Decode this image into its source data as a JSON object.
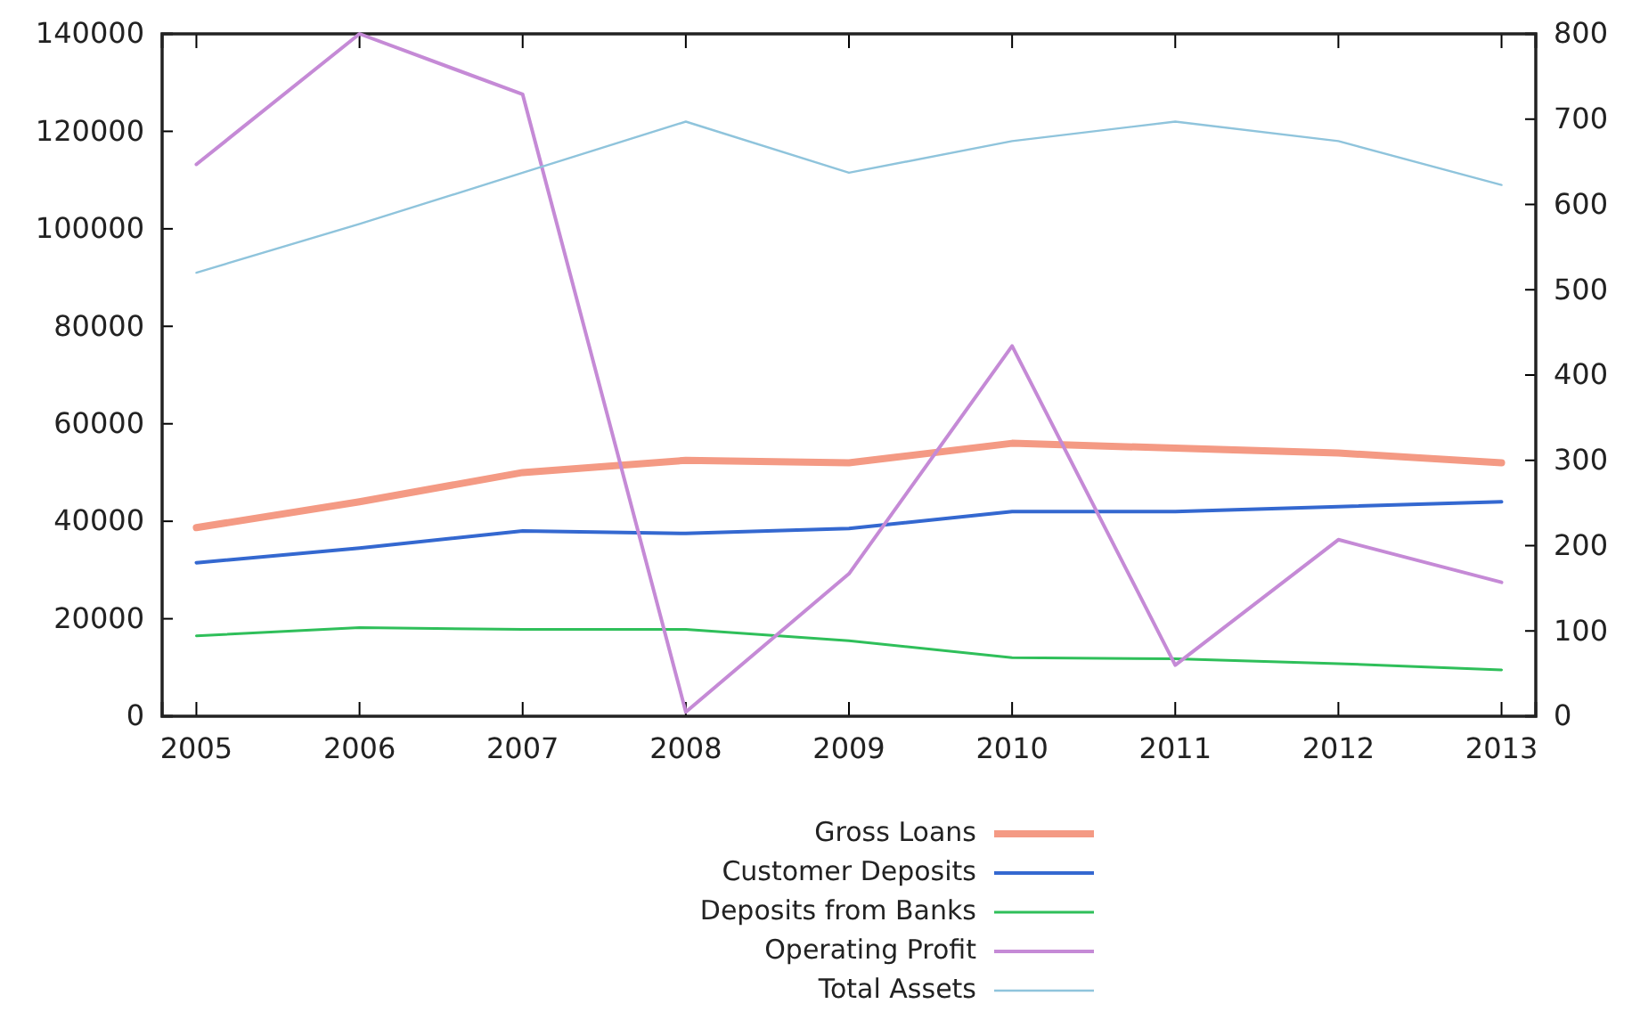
{
  "chart_data": {
    "type": "line",
    "x": [
      2005,
      2006,
      2007,
      2008,
      2009,
      2010,
      2011,
      2012,
      2013
    ],
    "xlim": [
      2004.79,
      2013.21
    ],
    "xticks": [
      2005,
      2006,
      2007,
      2008,
      2009,
      2010,
      2011,
      2012,
      2013
    ],
    "ylim": [
      0,
      140000
    ],
    "yticks": [
      0,
      20000,
      40000,
      60000,
      80000,
      100000,
      120000,
      140000
    ],
    "y2lim": [
      0,
      800
    ],
    "y2ticks": [
      0,
      100,
      200,
      300,
      400,
      500,
      600,
      700,
      800
    ],
    "legend": "bottom",
    "grid": false,
    "series": [
      {
        "name": "Gross Loans",
        "color": "#f49a84",
        "values": [
          38700,
          44000,
          50000,
          52500,
          52000,
          56000,
          55000,
          54000,
          52000
        ]
      },
      {
        "name": "Customer Deposits",
        "color": "#3468d0",
        "values": [
          31500,
          34500,
          38000,
          37500,
          38500,
          42000,
          42000,
          43000,
          44000
        ]
      },
      {
        "name": "Deposits from Banks",
        "color": "#2fbf5a",
        "values": [
          16500,
          18200,
          17800,
          17800,
          15500,
          12000,
          11800,
          10800,
          9500
        ]
      },
      {
        "name": "Operating Profit",
        "color": "#c58ad6",
        "axis": "y2",
        "values": [
          647,
          800,
          729,
          5,
          167,
          434,
          60,
          207,
          157
        ]
      },
      {
        "name": "Total Assets",
        "color": "#8fc4dc",
        "values": [
          91000,
          101000,
          111500,
          122000,
          111500,
          118000,
          122000,
          118000,
          109000
        ]
      }
    ]
  }
}
